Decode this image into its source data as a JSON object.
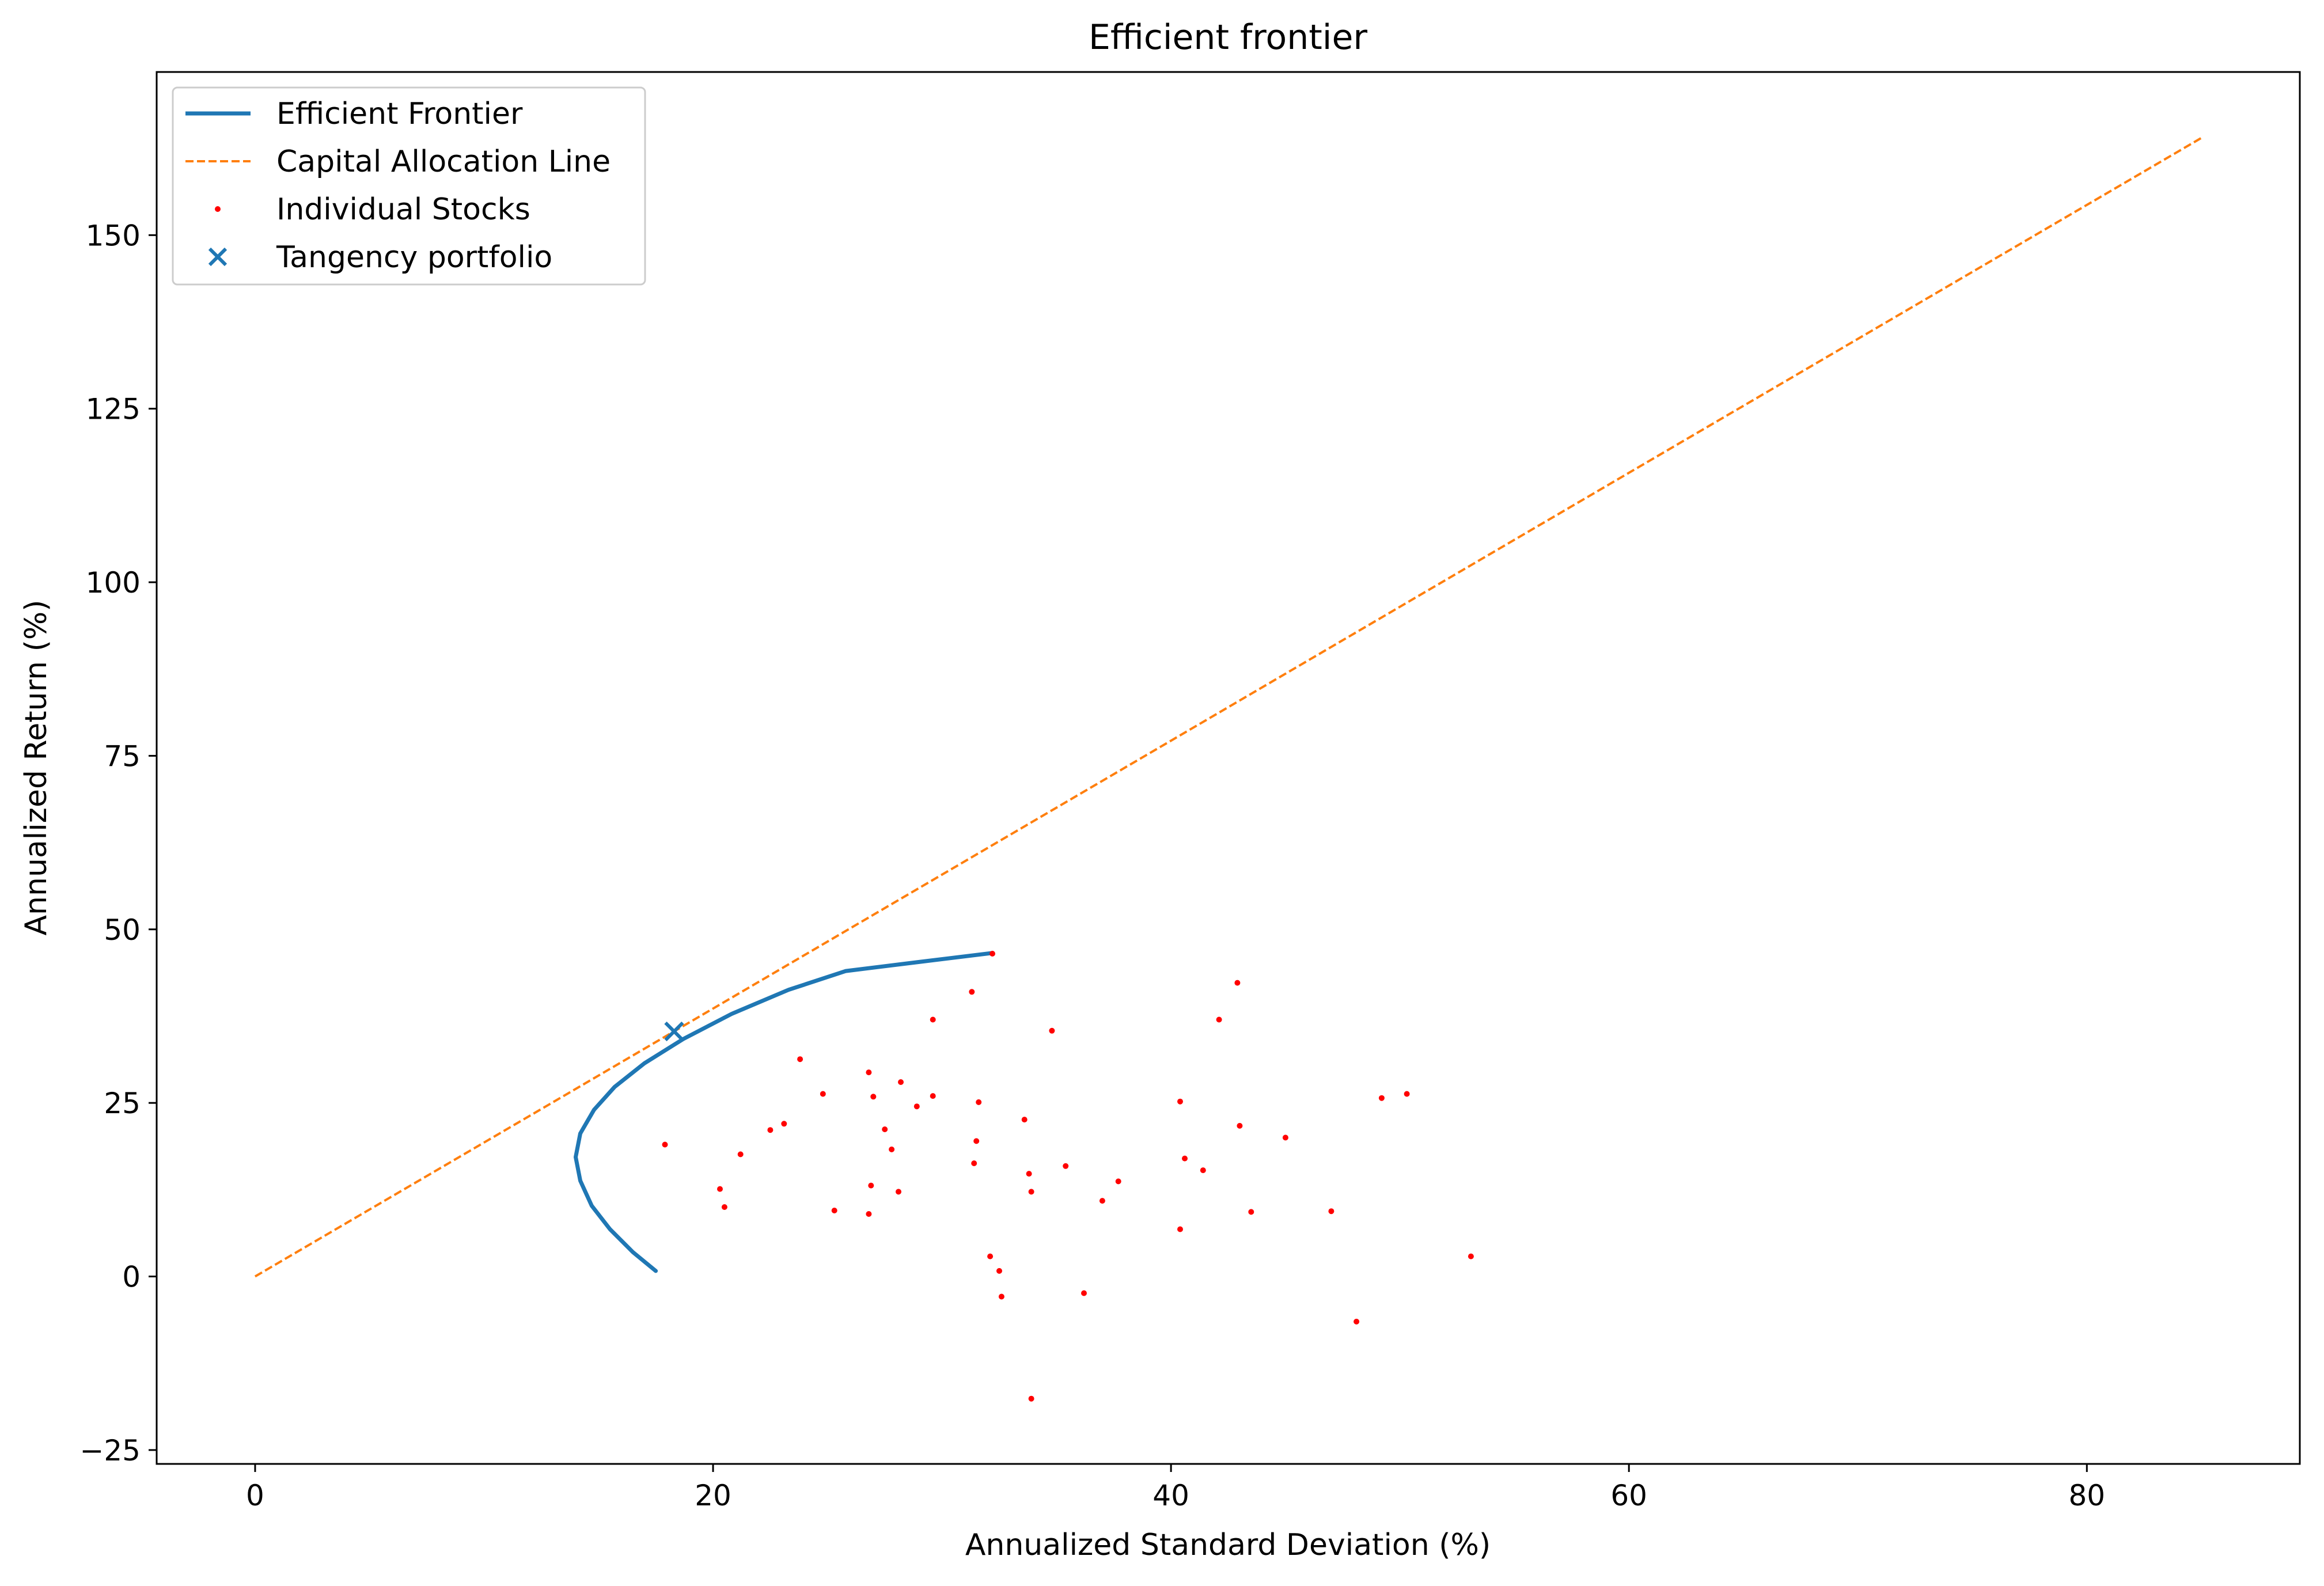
{
  "chart_data": {
    "type": "scatter",
    "title": "Efficient frontier",
    "xlabel": "Annualized Standard Deviation (%)",
    "ylabel": "Annualized Return (%)",
    "xlim": [
      -4.3,
      89.3
    ],
    "ylim": [
      -27,
      173.5
    ],
    "xticks": [
      0,
      20,
      40,
      60,
      80
    ],
    "yticks": [
      -25,
      0,
      25,
      50,
      75,
      100,
      125,
      150
    ],
    "grid": false,
    "legend_position": "upper-left",
    "legend": [
      {
        "label": "Efficient Frontier",
        "marker": "line"
      },
      {
        "label": "Capital Allocation Line",
        "marker": "dashed-line"
      },
      {
        "label": "Individual Stocks",
        "marker": "dot"
      },
      {
        "label": "Tangency portfolio",
        "marker": "x"
      }
    ],
    "colors": {
      "frontier": "#1f77b4",
      "cal": "#ff7f0e",
      "stocks": "#ff0000",
      "tangency": "#1f77b4",
      "axes": "#000000"
    },
    "series": [
      {
        "name": "Efficient Frontier",
        "kind": "line",
        "points": [
          [
            17.5,
            0.8
          ],
          [
            16.5,
            3.5
          ],
          [
            15.5,
            6.8
          ],
          [
            14.7,
            10.2
          ],
          [
            14.2,
            13.8
          ],
          [
            14.0,
            17.2
          ],
          [
            14.2,
            20.6
          ],
          [
            14.8,
            24.0
          ],
          [
            15.7,
            27.3
          ],
          [
            17.0,
            30.7
          ],
          [
            18.7,
            34.2
          ],
          [
            20.8,
            37.8
          ],
          [
            23.3,
            41.3
          ],
          [
            25.8,
            44.0
          ],
          [
            29.0,
            45.3
          ],
          [
            32.2,
            46.6
          ]
        ]
      },
      {
        "name": "Capital Allocation Line",
        "kind": "dashed-line",
        "points": [
          [
            0,
            0
          ],
          [
            85,
            164
          ]
        ]
      },
      {
        "name": "Individual Stocks",
        "kind": "scatter",
        "points": [
          [
            32.2,
            46.5
          ],
          [
            31.3,
            41.0
          ],
          [
            42.9,
            42.3
          ],
          [
            29.6,
            37.0
          ],
          [
            42.1,
            37.0
          ],
          [
            34.8,
            35.4
          ],
          [
            23.8,
            31.3
          ],
          [
            26.8,
            29.4
          ],
          [
            28.2,
            28.0
          ],
          [
            24.8,
            26.3
          ],
          [
            27.0,
            25.9
          ],
          [
            29.6,
            26.0
          ],
          [
            31.6,
            25.1
          ],
          [
            40.4,
            25.2
          ],
          [
            49.2,
            25.7
          ],
          [
            50.3,
            26.3
          ],
          [
            28.9,
            24.5
          ],
          [
            33.6,
            22.6
          ],
          [
            23.1,
            22.0
          ],
          [
            22.5,
            21.1
          ],
          [
            27.5,
            21.2
          ],
          [
            43.0,
            21.7
          ],
          [
            45.0,
            20.0
          ],
          [
            17.9,
            19.0
          ],
          [
            31.5,
            19.5
          ],
          [
            27.8,
            18.3
          ],
          [
            21.2,
            17.6
          ],
          [
            40.6,
            17.0
          ],
          [
            31.4,
            16.3
          ],
          [
            35.4,
            15.9
          ],
          [
            41.4,
            15.3
          ],
          [
            33.8,
            14.8
          ],
          [
            37.7,
            13.7
          ],
          [
            26.9,
            13.1
          ],
          [
            20.3,
            12.6
          ],
          [
            28.1,
            12.2
          ],
          [
            33.9,
            12.2
          ],
          [
            37.0,
            10.9
          ],
          [
            20.5,
            10.0
          ],
          [
            25.3,
            9.5
          ],
          [
            43.5,
            9.3
          ],
          [
            47.0,
            9.4
          ],
          [
            26.8,
            9.0
          ],
          [
            40.4,
            6.8
          ],
          [
            32.1,
            2.9
          ],
          [
            53.1,
            2.9
          ],
          [
            32.5,
            0.8
          ],
          [
            36.2,
            -2.4
          ],
          [
            32.6,
            -2.9
          ],
          [
            48.1,
            -6.5
          ],
          [
            33.9,
            -17.6
          ]
        ]
      },
      {
        "name": "Tangency portfolio",
        "kind": "marker",
        "points": [
          [
            18.3,
            35.3
          ]
        ]
      }
    ]
  }
}
